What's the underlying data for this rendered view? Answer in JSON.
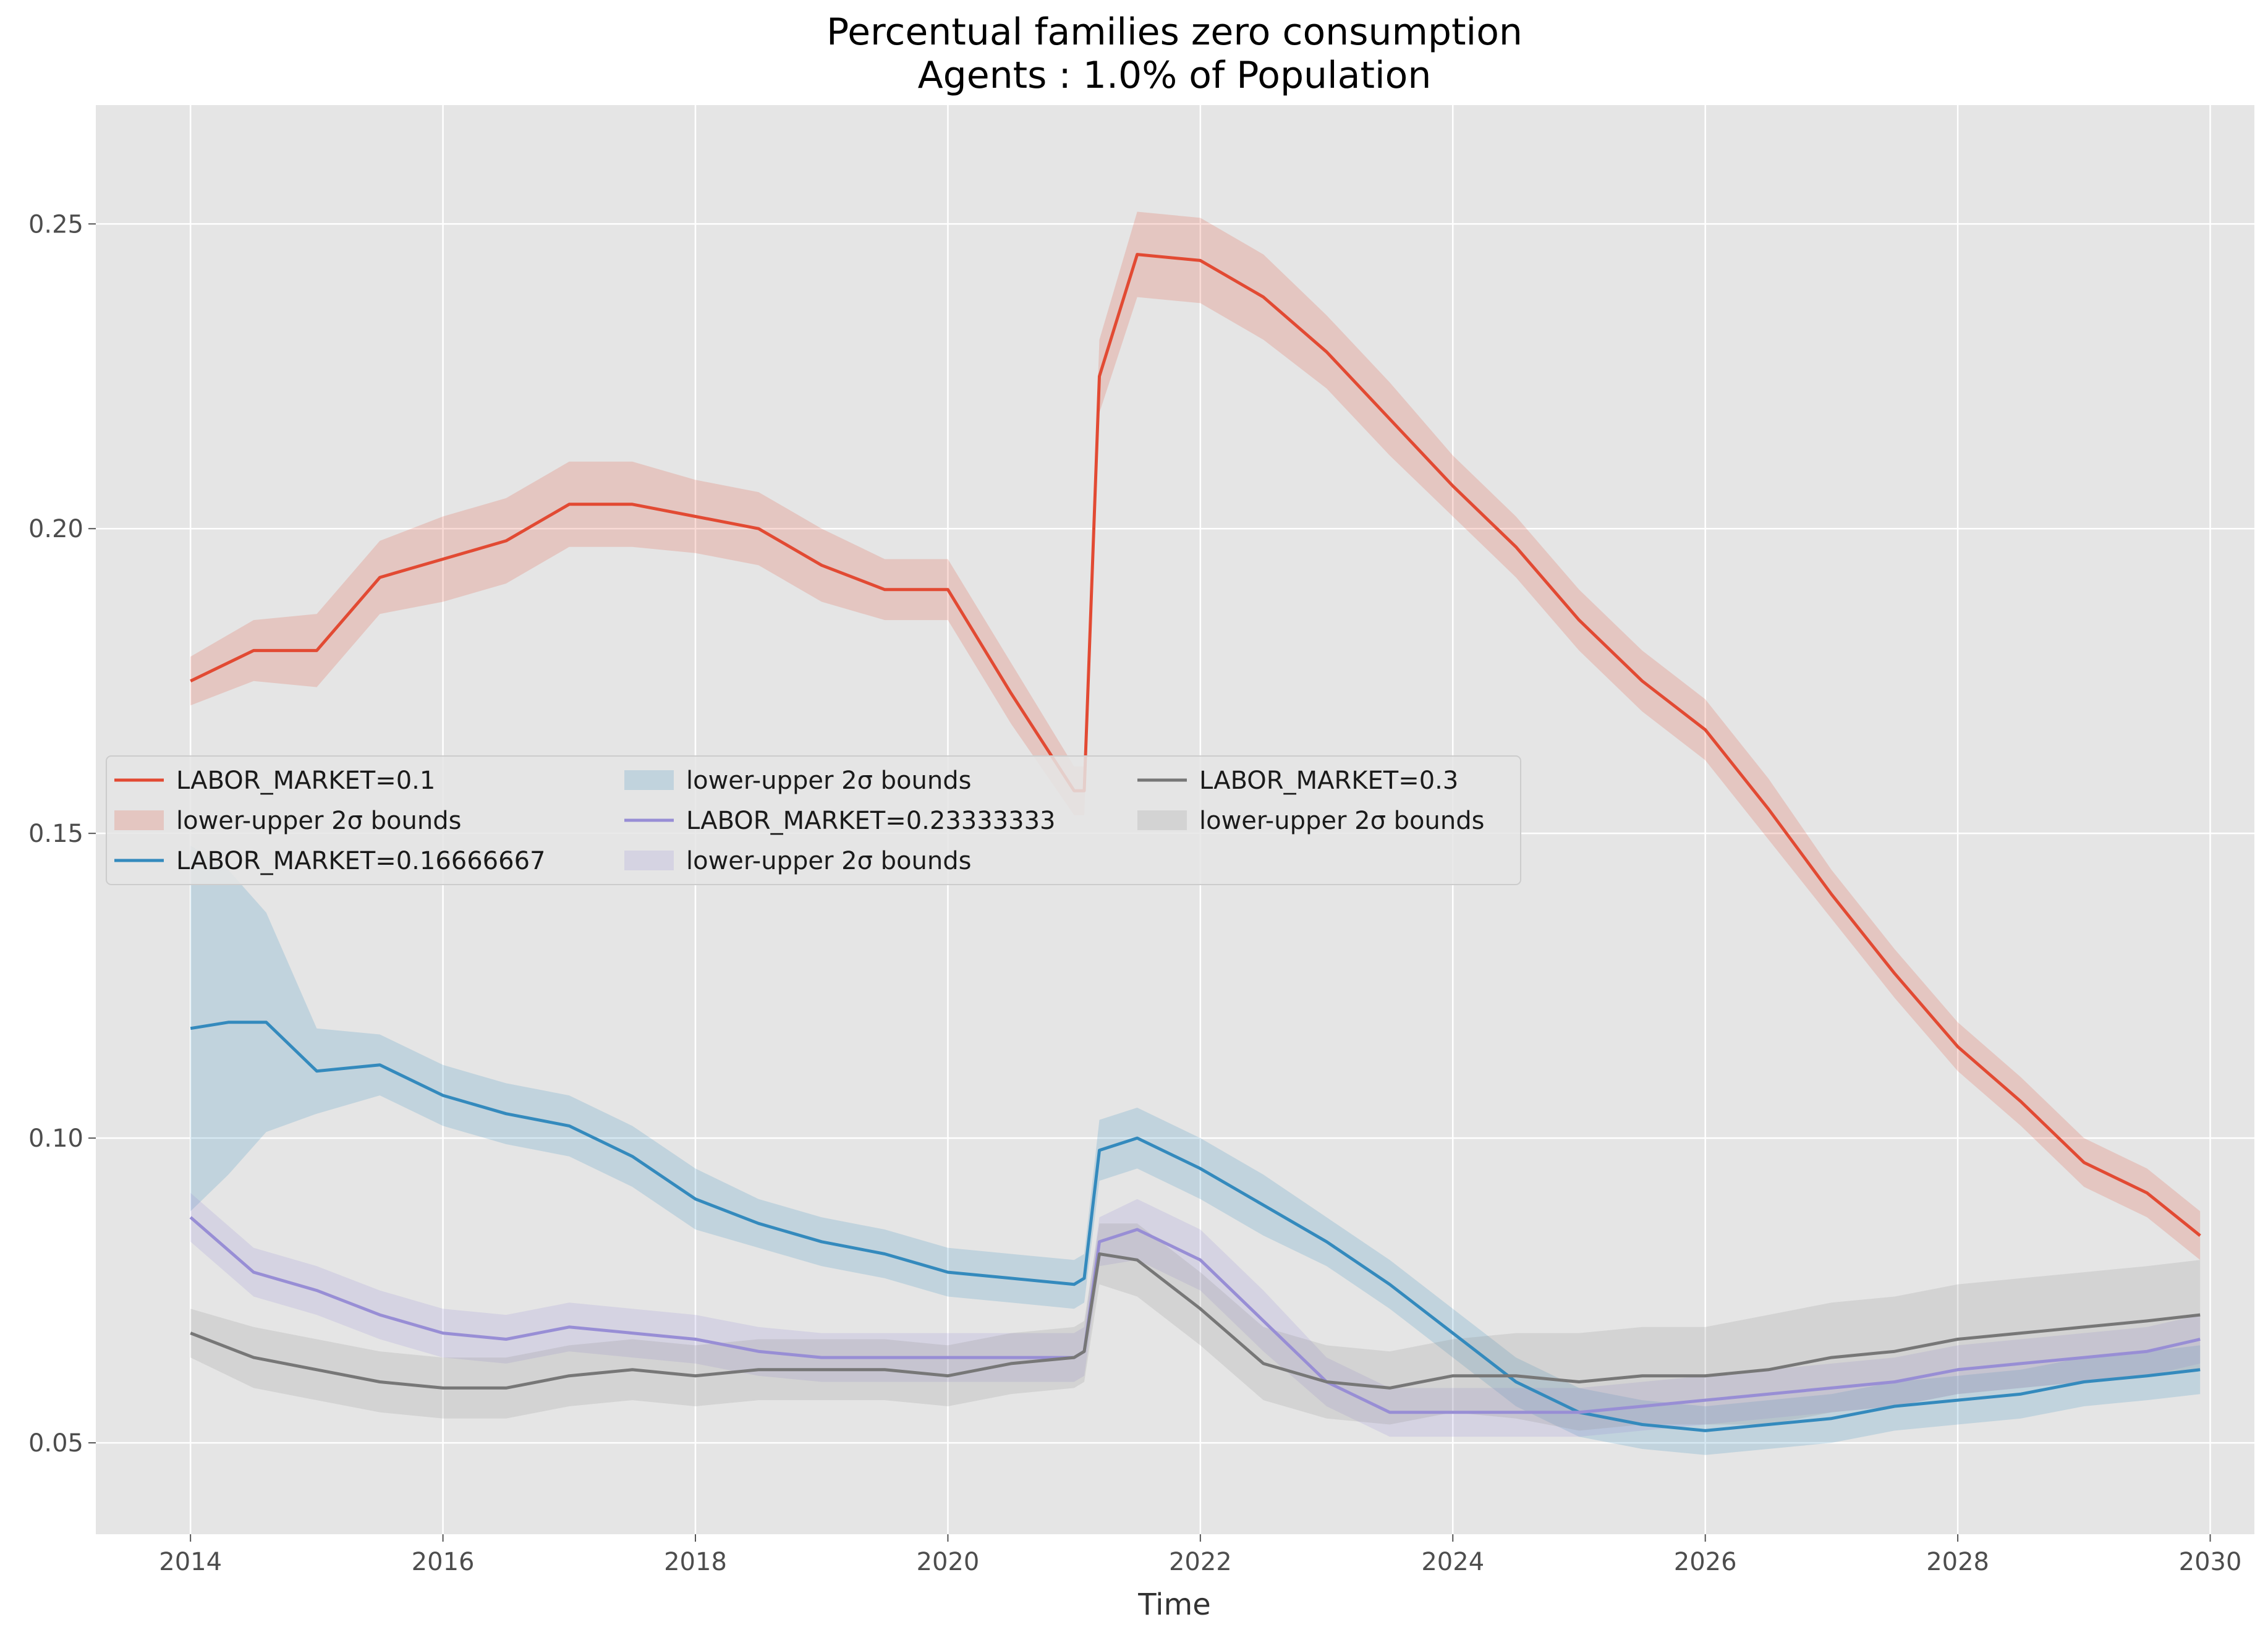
{
  "chart_data": {
    "type": "line",
    "title": "Percentual families zero consumption",
    "subtitle": "Agents : 1.0% of Population",
    "xlabel": "Time",
    "ylabel": "",
    "xlim": [
      2013.25,
      2030.35
    ],
    "ylim": [
      0.035,
      0.2695
    ],
    "x_ticks": [
      2014,
      2016,
      2018,
      2020,
      2022,
      2024,
      2026,
      2028,
      2030
    ],
    "x_tick_labels": [
      "2014",
      "2016",
      "2018",
      "2020",
      "2022",
      "2024",
      "2026",
      "2028",
      "2030"
    ],
    "y_ticks": [
      0.05,
      0.1,
      0.15,
      0.2,
      0.25
    ],
    "y_tick_labels": [
      "0.05",
      "0.10",
      "0.15",
      "0.20",
      "0.25"
    ],
    "grid": true,
    "background": "#e5e5e5",
    "legend_placement": "center-left",
    "series": [
      {
        "name": "LABOR_MARKET=0.1",
        "band_label": "lower-upper 2σ bounds",
        "color": "#e24a33",
        "band_color": "#e24a33",
        "x": [
          2014.0,
          2014.5,
          2015.0,
          2015.5,
          2016.0,
          2016.5,
          2017.0,
          2017.5,
          2018.0,
          2018.5,
          2019.0,
          2019.5,
          2020.0,
          2020.5,
          2021.0,
          2021.08,
          2021.2,
          2021.5,
          2022.0,
          2022.5,
          2023.0,
          2023.5,
          2024.0,
          2024.5,
          2025.0,
          2025.5,
          2026.0,
          2026.5,
          2027.0,
          2027.5,
          2028.0,
          2028.5,
          2029.0,
          2029.5,
          2029.92
        ],
        "values": [
          0.175,
          0.18,
          0.18,
          0.192,
          0.195,
          0.198,
          0.204,
          0.204,
          0.202,
          0.2,
          0.194,
          0.19,
          0.19,
          0.173,
          0.157,
          0.157,
          0.225,
          0.245,
          0.244,
          0.238,
          0.229,
          0.218,
          0.207,
          0.197,
          0.185,
          0.175,
          0.167,
          0.154,
          0.14,
          0.127,
          0.115,
          0.106,
          0.096,
          0.091,
          0.084
        ],
        "band_half_width": [
          0.004,
          0.005,
          0.006,
          0.006,
          0.007,
          0.007,
          0.007,
          0.007,
          0.006,
          0.006,
          0.006,
          0.005,
          0.005,
          0.005,
          0.004,
          0.004,
          0.006,
          0.007,
          0.007,
          0.007,
          0.006,
          0.006,
          0.005,
          0.005,
          0.005,
          0.005,
          0.005,
          0.005,
          0.004,
          0.004,
          0.004,
          0.004,
          0.004,
          0.004,
          0.004
        ]
      },
      {
        "name": "LABOR_MARKET=0.16666667",
        "band_label": "lower-upper 2σ bounds",
        "color": "#348abd",
        "band_color": "#348abd",
        "x": [
          2014.0,
          2014.3,
          2014.6,
          2015.0,
          2015.5,
          2016.0,
          2016.5,
          2017.0,
          2017.5,
          2018.0,
          2018.5,
          2019.0,
          2019.5,
          2020.0,
          2020.5,
          2021.0,
          2021.08,
          2021.2,
          2021.5,
          2022.0,
          2022.5,
          2023.0,
          2023.5,
          2024.0,
          2024.5,
          2025.0,
          2025.5,
          2026.0,
          2026.5,
          2027.0,
          2027.5,
          2028.0,
          2028.5,
          2029.0,
          2029.5,
          2029.92
        ],
        "values": [
          0.118,
          0.119,
          0.119,
          0.111,
          0.112,
          0.107,
          0.104,
          0.102,
          0.097,
          0.09,
          0.086,
          0.083,
          0.081,
          0.078,
          0.077,
          0.076,
          0.077,
          0.098,
          0.1,
          0.095,
          0.089,
          0.083,
          0.076,
          0.068,
          0.06,
          0.055,
          0.053,
          0.052,
          0.053,
          0.054,
          0.056,
          0.057,
          0.058,
          0.06,
          0.061,
          0.062
        ],
        "band_half_width": [
          0.03,
          0.025,
          0.018,
          0.007,
          0.005,
          0.005,
          0.005,
          0.005,
          0.005,
          0.005,
          0.004,
          0.004,
          0.004,
          0.004,
          0.004,
          0.004,
          0.004,
          0.005,
          0.005,
          0.005,
          0.005,
          0.004,
          0.004,
          0.004,
          0.004,
          0.004,
          0.004,
          0.004,
          0.004,
          0.004,
          0.004,
          0.004,
          0.004,
          0.004,
          0.004,
          0.004
        ]
      },
      {
        "name": "LABOR_MARKET=0.23333333",
        "band_label": "lower-upper 2σ bounds",
        "color": "#988ed5",
        "band_color": "#988ed5",
        "x": [
          2014.0,
          2014.5,
          2015.0,
          2015.5,
          2016.0,
          2016.5,
          2017.0,
          2017.5,
          2018.0,
          2018.5,
          2019.0,
          2019.5,
          2020.0,
          2020.5,
          2021.0,
          2021.08,
          2021.2,
          2021.5,
          2022.0,
          2022.5,
          2023.0,
          2023.5,
          2024.0,
          2024.5,
          2025.0,
          2025.5,
          2026.0,
          2026.5,
          2027.0,
          2027.5,
          2028.0,
          2028.5,
          2029.0,
          2029.5,
          2029.92
        ],
        "values": [
          0.087,
          0.078,
          0.075,
          0.071,
          0.068,
          0.067,
          0.069,
          0.068,
          0.067,
          0.065,
          0.064,
          0.064,
          0.064,
          0.064,
          0.064,
          0.065,
          0.083,
          0.085,
          0.08,
          0.07,
          0.06,
          0.055,
          0.055,
          0.055,
          0.055,
          0.056,
          0.057,
          0.058,
          0.059,
          0.06,
          0.062,
          0.063,
          0.064,
          0.065,
          0.067
        ],
        "band_half_width": [
          0.004,
          0.004,
          0.004,
          0.004,
          0.004,
          0.004,
          0.004,
          0.004,
          0.004,
          0.004,
          0.004,
          0.004,
          0.004,
          0.004,
          0.004,
          0.004,
          0.004,
          0.005,
          0.005,
          0.005,
          0.004,
          0.004,
          0.004,
          0.004,
          0.004,
          0.004,
          0.004,
          0.004,
          0.004,
          0.004,
          0.004,
          0.004,
          0.004,
          0.004,
          0.004
        ]
      },
      {
        "name": "LABOR_MARKET=0.3",
        "band_label": "lower-upper 2σ bounds",
        "color": "#777777",
        "band_color": "#8c8c8c",
        "x": [
          2014.0,
          2014.5,
          2015.0,
          2015.5,
          2016.0,
          2016.5,
          2017.0,
          2017.5,
          2018.0,
          2018.5,
          2019.0,
          2019.5,
          2020.0,
          2020.5,
          2021.0,
          2021.08,
          2021.2,
          2021.5,
          2022.0,
          2022.5,
          2023.0,
          2023.5,
          2024.0,
          2024.5,
          2025.0,
          2025.5,
          2026.0,
          2026.5,
          2027.0,
          2027.5,
          2028.0,
          2028.5,
          2029.0,
          2029.5,
          2029.92
        ],
        "values": [
          0.068,
          0.064,
          0.062,
          0.06,
          0.059,
          0.059,
          0.061,
          0.062,
          0.061,
          0.062,
          0.062,
          0.062,
          0.061,
          0.063,
          0.064,
          0.065,
          0.081,
          0.08,
          0.072,
          0.063,
          0.06,
          0.059,
          0.061,
          0.061,
          0.06,
          0.061,
          0.061,
          0.062,
          0.064,
          0.065,
          0.067,
          0.068,
          0.069,
          0.07,
          0.071
        ],
        "band_half_width": [
          0.004,
          0.005,
          0.005,
          0.005,
          0.005,
          0.005,
          0.005,
          0.005,
          0.005,
          0.005,
          0.005,
          0.005,
          0.005,
          0.005,
          0.005,
          0.005,
          0.005,
          0.006,
          0.006,
          0.006,
          0.006,
          0.006,
          0.006,
          0.007,
          0.008,
          0.008,
          0.008,
          0.009,
          0.009,
          0.009,
          0.009,
          0.009,
          0.009,
          0.009,
          0.009
        ]
      }
    ]
  }
}
